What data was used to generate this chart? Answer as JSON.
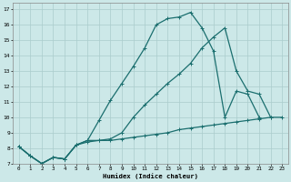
{
  "xlabel": "Humidex (Indice chaleur)",
  "bg_color": "#cce8e8",
  "line_color": "#1a6e6e",
  "grid_color": "#aacccc",
  "xlim": [
    -0.5,
    23.5
  ],
  "ylim": [
    7,
    17.4
  ],
  "xticks": [
    0,
    1,
    2,
    3,
    4,
    5,
    6,
    7,
    8,
    9,
    10,
    11,
    12,
    13,
    14,
    15,
    16,
    17,
    18,
    19,
    20,
    21,
    22,
    23
  ],
  "yticks": [
    7,
    8,
    9,
    10,
    11,
    12,
    13,
    14,
    15,
    16,
    17
  ],
  "line1_x": [
    0,
    1,
    2,
    3,
    4,
    5,
    6,
    7,
    8,
    9,
    10,
    11,
    12,
    13,
    14,
    15,
    16,
    17,
    18,
    19,
    20,
    21,
    22
  ],
  "line1_y": [
    8.1,
    7.5,
    7.0,
    7.4,
    7.3,
    8.2,
    8.5,
    9.8,
    11.1,
    12.2,
    13.3,
    14.5,
    16.0,
    16.4,
    16.5,
    16.8,
    15.8,
    14.3,
    10.0,
    11.7,
    11.5,
    10.0,
    null
  ],
  "line2_x": [
    0,
    1,
    2,
    3,
    4,
    5,
    6,
    7,
    8,
    9,
    10,
    11,
    12,
    13,
    14,
    15,
    16,
    17,
    18,
    19,
    20,
    21,
    22
  ],
  "line2_y": [
    8.1,
    7.5,
    7.0,
    7.4,
    7.3,
    8.2,
    8.5,
    8.5,
    8.6,
    9.0,
    10.0,
    10.8,
    11.5,
    12.2,
    12.8,
    13.5,
    14.5,
    15.2,
    15.8,
    13.0,
    11.7,
    11.5,
    10.0
  ],
  "line3_x": [
    0,
    1,
    2,
    3,
    4,
    5,
    6,
    7,
    8,
    9,
    10,
    11,
    12,
    13,
    14,
    15,
    16,
    17,
    18,
    19,
    20,
    21,
    22,
    23
  ],
  "line3_y": [
    8.1,
    7.5,
    7.0,
    7.4,
    7.3,
    8.2,
    8.4,
    8.5,
    8.5,
    8.6,
    8.7,
    8.8,
    8.9,
    9.0,
    9.2,
    9.3,
    9.4,
    9.5,
    9.6,
    9.7,
    9.8,
    9.9,
    10.0,
    10.0
  ]
}
